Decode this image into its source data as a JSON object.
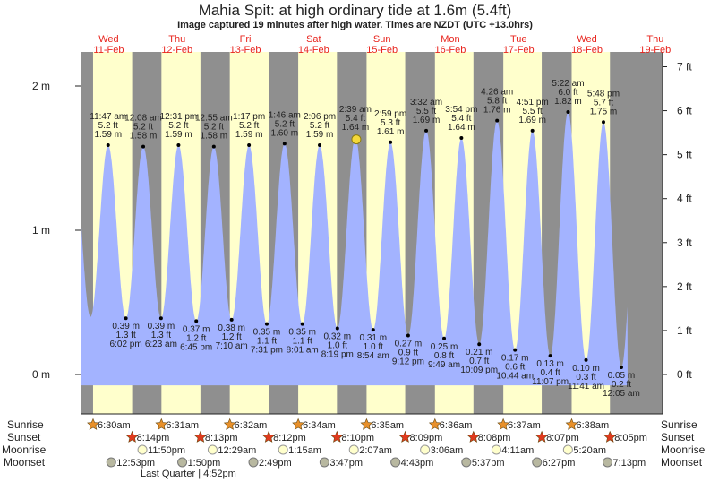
{
  "header": {
    "title": "Mahia Spit: at high  ordinary tide at 1.6m (5.4ft)",
    "subtitle": "Image captured 19 minutes after high water. Times are NZDT (UTC +13.0hrs)"
  },
  "days": [
    {
      "dow": "Wed",
      "date": "11-Feb"
    },
    {
      "dow": "Thu",
      "date": "12-Feb"
    },
    {
      "dow": "Fri",
      "date": "13-Feb"
    },
    {
      "dow": "Sat",
      "date": "14-Feb"
    },
    {
      "dow": "Sun",
      "date": "15-Feb"
    },
    {
      "dow": "Mon",
      "date": "16-Feb"
    },
    {
      "dow": "Tue",
      "date": "17-Feb"
    },
    {
      "dow": "Wed",
      "date": "18-Feb"
    },
    {
      "dow": "Thu",
      "date": "19-Feb"
    }
  ],
  "colors": {
    "night": "#8f8f8f",
    "day": "#ffffcc",
    "water": "#a3b3ff",
    "daylabel": "#e8251e",
    "sunrise": "#e8902a",
    "sunset": "#e03a1e",
    "moonrise": "#ffffcc",
    "moonset": "#b8b8a0"
  },
  "chart_data": {
    "type": "area",
    "title": "Mahia Spit tide",
    "ylabel_left": "m",
    "ylabel_right": "ft",
    "m_ticks": [
      "0 m",
      "1 m",
      "2 m"
    ],
    "ft_ticks": [
      "0 ft",
      "1 ft",
      "2 ft",
      "3 ft",
      "4 ft",
      "5 ft",
      "6 ft",
      "7 ft"
    ],
    "time_origin": "Wed 11-Feb 00:00",
    "extremes": [
      {
        "type": "high",
        "hours": 11.78,
        "m": 1.59,
        "time": "11:47 am",
        "ft": "5.2 ft",
        "mlabel": "1.59 m"
      },
      {
        "type": "low",
        "hours": 18.03,
        "m": 0.39,
        "time": "6:02 pm",
        "ft": "1.3 ft",
        "mlabel": "0.39 m"
      },
      {
        "type": "high",
        "hours": 24.13,
        "m": 1.58,
        "time": "12:08 am",
        "ft": "5.2 ft",
        "mlabel": "1.58 m"
      },
      {
        "type": "low",
        "hours": 30.38,
        "m": 0.39,
        "time": "6:23 am",
        "ft": "1.3 ft",
        "mlabel": "0.39 m"
      },
      {
        "type": "high",
        "hours": 36.52,
        "m": 1.59,
        "time": "12:31 pm",
        "ft": "5.2 ft",
        "mlabel": "1.59 m"
      },
      {
        "type": "low",
        "hours": 42.75,
        "m": 0.37,
        "time": "6:45 pm",
        "ft": "1.2 ft",
        "mlabel": "0.37 m"
      },
      {
        "type": "high",
        "hours": 48.92,
        "m": 1.58,
        "time": "12:55 am",
        "ft": "5.2 ft",
        "mlabel": "1.58 m"
      },
      {
        "type": "low",
        "hours": 55.17,
        "m": 0.38,
        "time": "7:10 am",
        "ft": "1.2 ft",
        "mlabel": "0.38 m"
      },
      {
        "type": "high",
        "hours": 61.28,
        "m": 1.59,
        "time": "1:17 pm",
        "ft": "5.2 ft",
        "mlabel": "1.59 m"
      },
      {
        "type": "low",
        "hours": 67.52,
        "m": 0.35,
        "time": "7:31 pm",
        "ft": "1.1 ft",
        "mlabel": "0.35 m"
      },
      {
        "type": "high",
        "hours": 73.77,
        "m": 1.6,
        "time": "1:46 am",
        "ft": "5.2 ft",
        "mlabel": "1.60 m"
      },
      {
        "type": "low",
        "hours": 80.02,
        "m": 0.35,
        "time": "8:01 am",
        "ft": "1.1 ft",
        "mlabel": "0.35 m"
      },
      {
        "type": "high",
        "hours": 86.1,
        "m": 1.59,
        "time": "2:06 pm",
        "ft": "5.2 ft",
        "mlabel": "1.59 m"
      },
      {
        "type": "low",
        "hours": 92.32,
        "m": 0.32,
        "time": "8:19 pm",
        "ft": "1.0 ft",
        "mlabel": "0.32 m"
      },
      {
        "type": "high",
        "hours": 98.65,
        "m": 1.64,
        "time": "2:39 am",
        "ft": "5.4 ft",
        "mlabel": "1.64 m"
      },
      {
        "type": "low",
        "hours": 104.9,
        "m": 0.31,
        "time": "8:54 am",
        "ft": "1.0 ft",
        "mlabel": "0.31 m"
      },
      {
        "type": "high",
        "hours": 110.98,
        "m": 1.61,
        "time": "2:59 pm",
        "ft": "5.3 ft",
        "mlabel": "1.61 m"
      },
      {
        "type": "low",
        "hours": 117.2,
        "m": 0.27,
        "time": "9:12 pm",
        "ft": "0.9 ft",
        "mlabel": "0.27 m"
      },
      {
        "type": "high",
        "hours": 123.53,
        "m": 1.69,
        "time": "3:32 am",
        "ft": "5.5 ft",
        "mlabel": "1.69 m"
      },
      {
        "type": "low",
        "hours": 129.82,
        "m": 0.25,
        "time": "9:49 am",
        "ft": "0.8 ft",
        "mlabel": "0.25 m"
      },
      {
        "type": "high",
        "hours": 135.9,
        "m": 1.64,
        "time": "3:54 pm",
        "ft": "5.4 ft",
        "mlabel": "1.64 m"
      },
      {
        "type": "low",
        "hours": 142.15,
        "m": 0.21,
        "time": "10:09 pm",
        "ft": "0.7 ft",
        "mlabel": "0.21 m"
      },
      {
        "type": "high",
        "hours": 148.43,
        "m": 1.76,
        "time": "4:26 am",
        "ft": "5.8 ft",
        "mlabel": "1.76 m"
      },
      {
        "type": "low",
        "hours": 154.73,
        "m": 0.17,
        "time": "10:44 am",
        "ft": "0.6 ft",
        "mlabel": "0.17 m"
      },
      {
        "type": "high",
        "hours": 160.85,
        "m": 1.69,
        "time": "4:51 pm",
        "ft": "5.5 ft",
        "mlabel": "1.69 m"
      },
      {
        "type": "low",
        "hours": 167.12,
        "m": 0.13,
        "time": "11:07 pm",
        "ft": "0.4 ft",
        "mlabel": "0.13 m"
      },
      {
        "type": "high",
        "hours": 173.37,
        "m": 1.82,
        "time": "5:22 am",
        "ft": "6.0 ft",
        "mlabel": "1.82 m"
      },
      {
        "type": "low",
        "hours": 179.68,
        "m": 0.1,
        "time": "11:41 am",
        "ft": "0.3 ft",
        "mlabel": "0.10 m"
      },
      {
        "type": "high",
        "hours": 185.8,
        "m": 1.75,
        "time": "5:48 pm",
        "ft": "5.7 ft",
        "mlabel": "1.75 m"
      },
      {
        "type": "low",
        "hours": 192.08,
        "m": 0.05,
        "time": "12:05 am",
        "ft": "0.2 ft",
        "mlabel": "0.05 m"
      }
    ],
    "current": {
      "hours": 98.97,
      "m": 1.63
    }
  },
  "rows": {
    "labels": {
      "sunrise": "Sunrise",
      "sunset": "Sunset",
      "moonrise": "Moonrise",
      "moonset": "Moonset"
    },
    "sunrise": [
      {
        "hours": 6.5,
        "time": "6:30am"
      },
      {
        "hours": 30.52,
        "time": "6:31am"
      },
      {
        "hours": 54.53,
        "time": "6:32am"
      },
      {
        "hours": 78.57,
        "time": "6:34am"
      },
      {
        "hours": 102.58,
        "time": "6:35am"
      },
      {
        "hours": 126.6,
        "time": "6:36am"
      },
      {
        "hours": 150.62,
        "time": "6:37am"
      },
      {
        "hours": 174.63,
        "time": "6:38am"
      }
    ],
    "sunset": [
      {
        "hours": 20.23,
        "time": "8:14pm"
      },
      {
        "hours": 44.22,
        "time": "8:13pm"
      },
      {
        "hours": 68.2,
        "time": "8:12pm"
      },
      {
        "hours": 92.17,
        "time": "8:10pm"
      },
      {
        "hours": 116.15,
        "time": "8:09pm"
      },
      {
        "hours": 140.13,
        "time": "8:08pm"
      },
      {
        "hours": 164.12,
        "time": "8:07pm"
      },
      {
        "hours": 188.08,
        "time": "8:05pm"
      }
    ],
    "moonrise": [
      {
        "hours": 23.83,
        "time": "11:50pm"
      },
      {
        "hours": 48.48,
        "time": "12:29am"
      },
      {
        "hours": 73.25,
        "time": "1:15am"
      },
      {
        "hours": 98.12,
        "time": "2:07am"
      },
      {
        "hours": 123.1,
        "time": "3:06am"
      },
      {
        "hours": 148.18,
        "time": "4:11am"
      },
      {
        "hours": 173.33,
        "time": "5:20am"
      }
    ],
    "moonset": [
      {
        "hours": 12.88,
        "time": "12:53pm"
      },
      {
        "hours": 37.83,
        "time": "1:50pm"
      },
      {
        "hours": 62.82,
        "time": "2:49pm"
      },
      {
        "hours": 87.78,
        "time": "3:47pm"
      },
      {
        "hours": 112.72,
        "time": "4:43pm"
      },
      {
        "hours": 137.62,
        "time": "5:37pm"
      },
      {
        "hours": 162.45,
        "time": "6:27pm"
      },
      {
        "hours": 187.22,
        "time": "7:13pm"
      }
    ],
    "moon_phase": "Last Quarter | 4:52pm"
  }
}
